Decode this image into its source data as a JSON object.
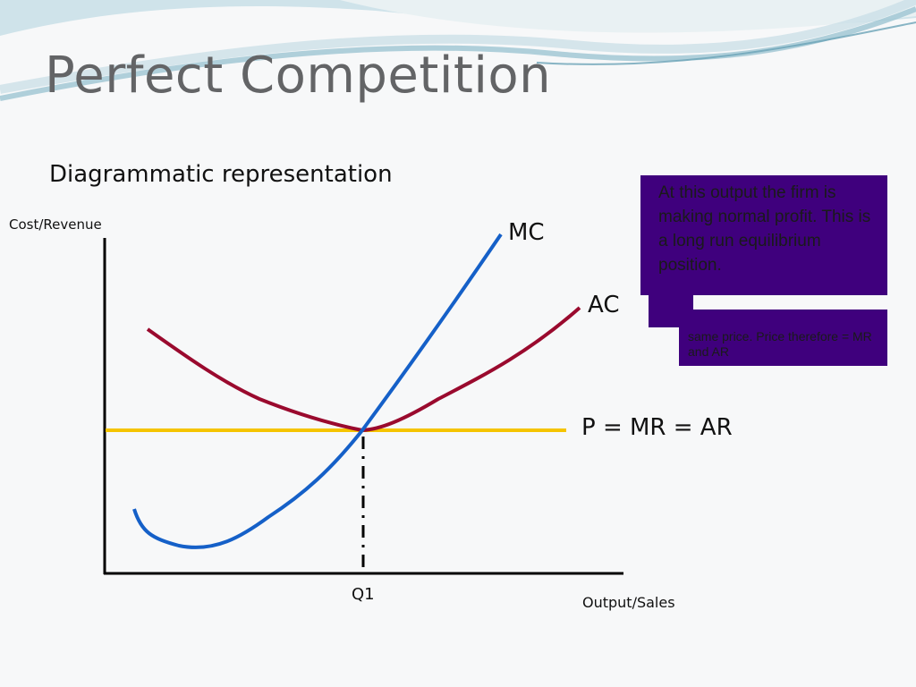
{
  "slide": {
    "title": "Perfect Competition",
    "subtitle": "Diagrammatic representation"
  },
  "diagram": {
    "y_axis_label": "Cost/Revenue",
    "x_axis_label": "Output/Sales",
    "equilibrium_label": "Q1",
    "curves": {
      "mc": {
        "label": "MC",
        "color": "#1560c8"
      },
      "ac": {
        "label": "AC",
        "color": "#9a0a2e"
      },
      "price": {
        "label": "P = MR = AR",
        "color": "#f5c400"
      }
    }
  },
  "callout": {
    "main_text": "At this output the firm is making normal profit. This is a long run equilibrium position.",
    "back_text": "same price. Price therefore = MR and AR",
    "box_color": "#3f007d"
  }
}
